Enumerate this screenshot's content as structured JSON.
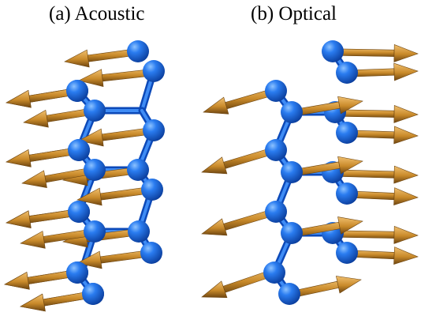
{
  "figure": {
    "panel_a": {
      "title": "(a) Acoustic",
      "mode": "acoustic"
    },
    "panel_b": {
      "title": "(b) Optical",
      "mode": "optical"
    }
  },
  "colors": {
    "atom": "#1f6fe0",
    "bond": "#1a5fd0",
    "arrow": "#c98a2a",
    "background": "#ffffff"
  }
}
